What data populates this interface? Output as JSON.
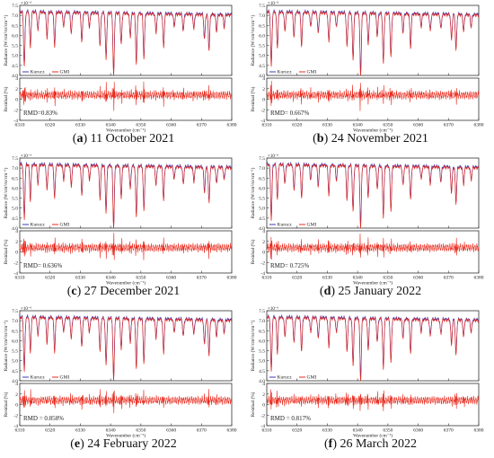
{
  "figure": {
    "colors": {
      "kurucz": "#3b3bb8",
      "gmi": "#e8291c",
      "axis": "#333333"
    },
    "panels": [
      {
        "id": "a",
        "caption_letter": "a",
        "caption_text": " 11 October 2021",
        "rmd_label": "RMD=0.83%"
      },
      {
        "id": "b",
        "caption_letter": "b",
        "caption_text": " 24 November 2021",
        "rmd_label": "RMD= 0.667%"
      },
      {
        "id": "c",
        "caption_letter": "c",
        "caption_text": " 27 December 2021",
        "rmd_label": "RMD= 0.636%"
      },
      {
        "id": "d",
        "caption_letter": "d",
        "caption_text": " 25 January 2022",
        "rmd_label": "RMD= 0.725%"
      },
      {
        "id": "e",
        "caption_letter": "e",
        "caption_text": " 24 February 2022",
        "rmd_label": "RMD = 0.858%"
      },
      {
        "id": "f",
        "caption_letter": "f",
        "caption_text": " 26 March 2022",
        "rmd_label": "RMD = 0.817%"
      }
    ]
  },
  "chart_data": {
    "type": "line",
    "xlim": [
      6310,
      6380
    ],
    "x_ticks": [
      6310,
      6320,
      6330,
      6340,
      6350,
      6360,
      6370,
      6380
    ],
    "xlabel": "Wavenumber (cm⁻¹)",
    "top": {
      "ylabel": "Radiance (W/cm²/sr/cm⁻¹)",
      "exponent_label": "×10⁻⁶",
      "ylim": [
        4.0,
        7.5
      ],
      "y_ticks": [
        "7.5",
        "7.0",
        "6.5",
        "6.0",
        "5.5",
        "5.0",
        "4.5",
        "4.0"
      ],
      "series": [
        {
          "name": "Kurucz"
        },
        {
          "name": "GMI"
        }
      ],
      "continuum": [
        {
          "x": 6310,
          "y": 7.2
        },
        {
          "x": 6380,
          "y": 7.05
        }
      ],
      "absorption_lines": [
        {
          "x": 6311.5,
          "depth": 2.6
        },
        {
          "x": 6313.5,
          "depth": 1.7
        },
        {
          "x": 6316,
          "depth": 0.9
        },
        {
          "x": 6319,
          "depth": 1.2
        },
        {
          "x": 6321.5,
          "depth": 1.6
        },
        {
          "x": 6324.5,
          "depth": 0.7
        },
        {
          "x": 6327,
          "depth": 1.0
        },
        {
          "x": 6330.5,
          "depth": 1.4
        },
        {
          "x": 6333,
          "depth": 0.7
        },
        {
          "x": 6336.5,
          "depth": 1.6
        },
        {
          "x": 6338.5,
          "depth": 2.2
        },
        {
          "x": 6341,
          "depth": 3.0
        },
        {
          "x": 6343.5,
          "depth": 1.5
        },
        {
          "x": 6346.5,
          "depth": 1.1
        },
        {
          "x": 6348.5,
          "depth": 2.4
        },
        {
          "x": 6351,
          "depth": 2.1
        },
        {
          "x": 6355,
          "depth": 0.9
        },
        {
          "x": 6357.5,
          "depth": 1.6
        },
        {
          "x": 6361,
          "depth": 0.6
        },
        {
          "x": 6364,
          "depth": 0.8
        },
        {
          "x": 6367.5,
          "depth": 0.7
        },
        {
          "x": 6371,
          "depth": 1.2
        },
        {
          "x": 6372.5,
          "depth": 1.7
        },
        {
          "x": 6375,
          "depth": 0.8
        },
        {
          "x": 6377.5,
          "depth": 0.6
        }
      ]
    },
    "bottom": {
      "ylabel": "Residual (%)",
      "ylim": [
        -4,
        4
      ],
      "y_ticks": [
        "4",
        "2",
        "0",
        "-2",
        "-4"
      ],
      "mean_residual": 0.8,
      "amplitude": 0.9
    }
  }
}
